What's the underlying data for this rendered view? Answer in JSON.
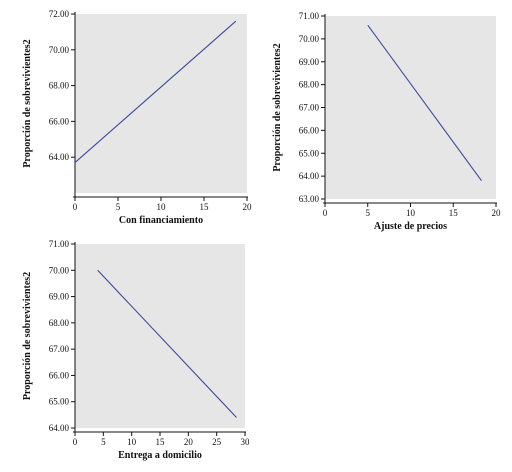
{
  "colors": {
    "plot_background": "#e6e6e6",
    "series_line": "#3b4a9a"
  },
  "chart_data": [
    {
      "type": "line",
      "xlabel": "Con financiamiento",
      "ylabel": "Proporción de sobrevivientes2",
      "xlim": [
        0,
        20
      ],
      "ylim": [
        62.0,
        72.0
      ],
      "x_ticks": [
        "0",
        "5",
        "10",
        "15",
        "20"
      ],
      "y_ticks": [
        "64.00",
        "66.00",
        "68.00",
        "70.00",
        "72.00"
      ],
      "grid": false,
      "series": [
        {
          "x": [
            0,
            18.7
          ],
          "y": [
            63.7,
            71.6
          ]
        }
      ]
    },
    {
      "type": "line",
      "xlabel": "Ajuste de precios",
      "ylabel": "Proporción de sobrevivientes2",
      "xlim": [
        0,
        20
      ],
      "ylim": [
        63.0,
        71.0
      ],
      "x_ticks": [
        "0",
        "5",
        "10",
        "15",
        "20"
      ],
      "y_ticks": [
        "63.00",
        "64.00",
        "65.00",
        "66.00",
        "67.00",
        "68.00",
        "69.00",
        "70.00",
        "71.00"
      ],
      "grid": false,
      "series": [
        {
          "x": [
            5.0,
            18.3
          ],
          "y": [
            70.6,
            63.8
          ]
        }
      ]
    },
    {
      "type": "line",
      "xlabel": "Entrega a domicilio",
      "ylabel": "Proporción de sobrevivientes2",
      "xlim": [
        0,
        30
      ],
      "ylim": [
        64.0,
        71.0
      ],
      "x_ticks": [
        "0",
        "5",
        "10",
        "15",
        "20",
        "25",
        "30"
      ],
      "y_ticks": [
        "64.00",
        "65.00",
        "66.00",
        "67.00",
        "68.00",
        "69.00",
        "70.00",
        "71.00"
      ],
      "grid": false,
      "series": [
        {
          "x": [
            4.0,
            28.5
          ],
          "y": [
            70.0,
            64.4
          ]
        }
      ]
    }
  ]
}
